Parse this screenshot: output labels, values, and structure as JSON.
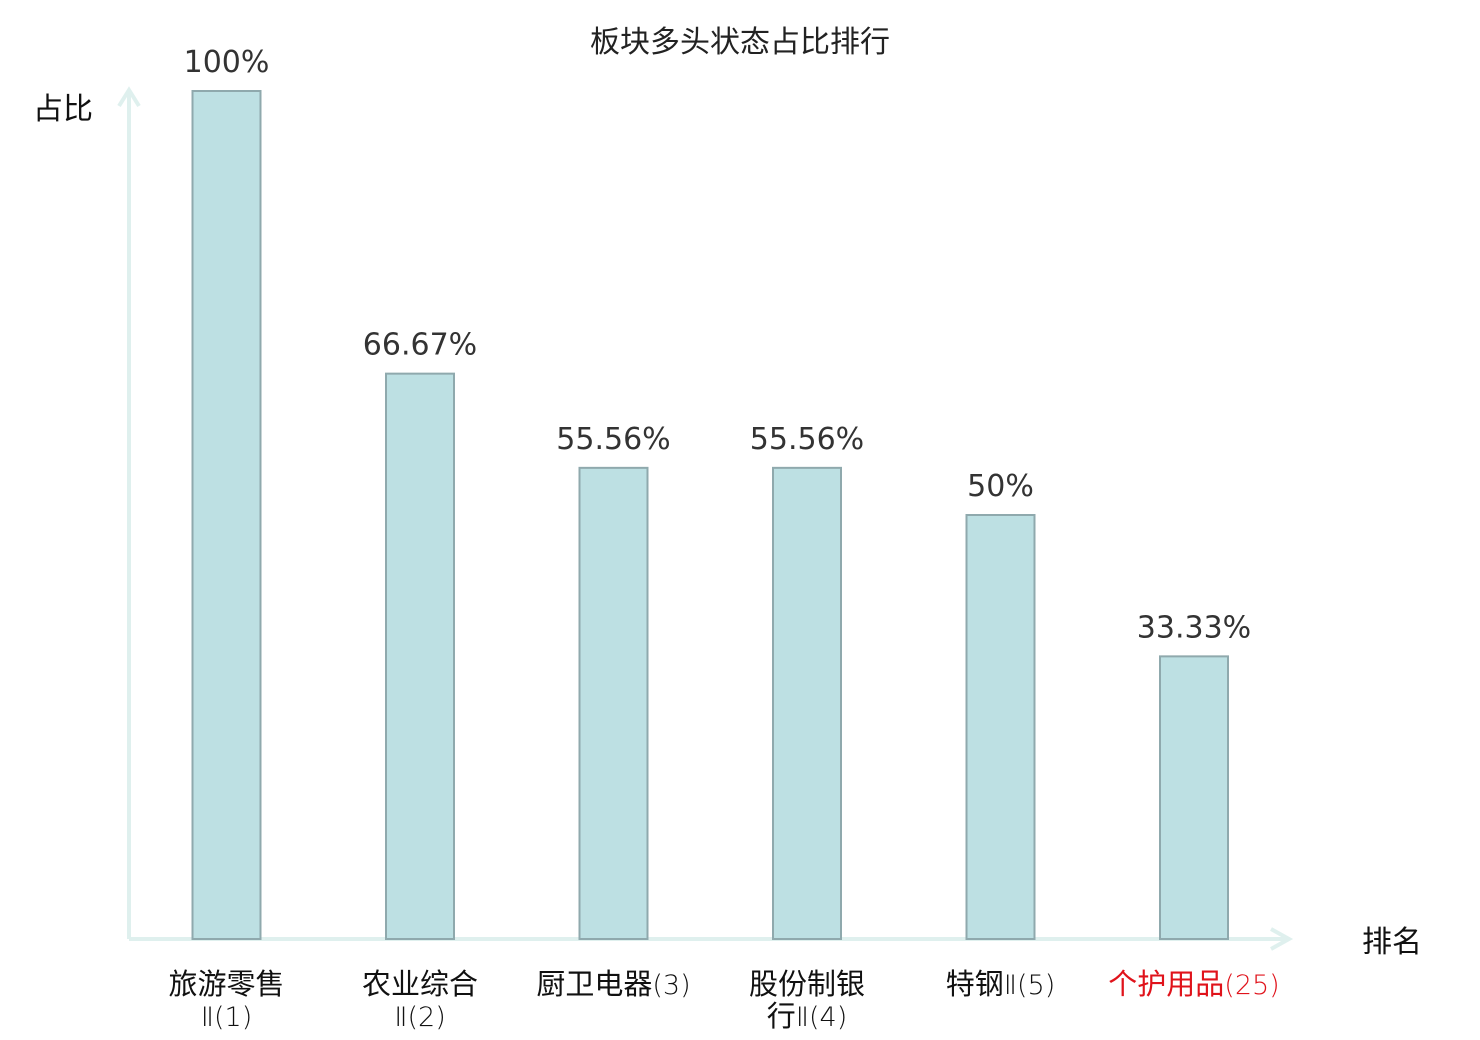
{
  "chart_data": {
    "type": "bar",
    "title": "板块多头状态占比排行",
    "ylabel": "占比",
    "xlabel": "排名",
    "ylim": [
      0,
      100
    ],
    "grid": false,
    "legend": "none",
    "categories": [
      {
        "lines": [
          {
            "name": "旅游零售",
            "suffix": ""
          },
          {
            "name": "",
            "suffix": "Ⅱ(1)"
          }
        ],
        "highlight": false
      },
      {
        "lines": [
          {
            "name": "农业综合",
            "suffix": ""
          },
          {
            "name": "",
            "suffix": "Ⅱ(2)"
          }
        ],
        "highlight": false
      },
      {
        "lines": [
          {
            "name": "厨卫电器",
            "suffix": "(3)"
          }
        ],
        "highlight": false
      },
      {
        "lines": [
          {
            "name": "股份制银",
            "suffix": ""
          },
          {
            "name": "行",
            "suffix": "Ⅱ(4)"
          }
        ],
        "highlight": false
      },
      {
        "lines": [
          {
            "name": "特钢",
            "suffix": "Ⅱ(5)"
          }
        ],
        "highlight": false
      },
      {
        "lines": [
          {
            "name": "个护用品",
            "suffix": "(25)"
          }
        ],
        "highlight": true
      }
    ],
    "values": [
      100,
      66.67,
      55.56,
      55.56,
      50,
      33.33
    ],
    "value_labels": [
      "100%",
      "66.67%",
      "55.56%",
      "55.56%",
      "50%",
      "33.33%"
    ],
    "colors": {
      "bar_fill": "#bde0e3",
      "bar_stroke": "#8fa9ad",
      "axis": "#dff0ee",
      "highlight": "#e0131b",
      "text": "#111111"
    }
  }
}
